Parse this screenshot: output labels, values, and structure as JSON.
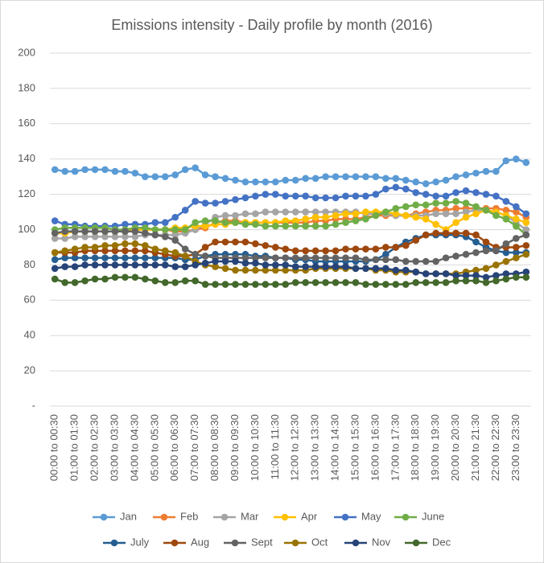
{
  "chart_data": {
    "type": "line",
    "title": "Emissions intensity - Daily profile by month (2016)",
    "categories": [
      "00:00 to 00:30",
      null,
      "01:00 to 01:30",
      null,
      "02:00 to 02:30",
      null,
      "03:00 to 03:30",
      null,
      "04:00 to 04:30",
      null,
      "05:00 to 05:30",
      null,
      "06:00 to 06:30",
      null,
      "07:00 to 07:30",
      null,
      "08:00 to 08:30",
      null,
      "09:00 to 09:30",
      null,
      "10:00 to 10:30",
      null,
      "11:00 to 11:30",
      null,
      "12:00 to 12:30",
      null,
      "13:00 to 13:30",
      null,
      "14:00 to 14:30",
      null,
      "15:00 to 15:30",
      null,
      "16:00 to 16:30",
      null,
      "17:00 to 17:30",
      null,
      "18:00 to 18:30",
      null,
      "19:00 to 19:30",
      null,
      "20:00 to 20:30",
      null,
      "21:00 to 21:30",
      null,
      "22:00 to 22:30",
      null,
      "23:00 to 23:30",
      null
    ],
    "ylim": [
      0,
      200
    ],
    "yticks": [
      {
        "value": 0,
        "label": "-"
      },
      20,
      40,
      60,
      80,
      100,
      120,
      140,
      160,
      180,
      200
    ],
    "grid": true,
    "legend": "bottom",
    "series": [
      {
        "name": "Jan",
        "color": "#5b9bd5",
        "values": [
          134,
          133,
          133,
          134,
          134,
          134,
          133,
          133,
          132,
          130,
          130,
          130,
          131,
          134,
          135,
          131,
          130,
          129,
          128,
          127,
          127,
          127,
          127,
          128,
          128,
          129,
          129,
          130,
          130,
          130,
          130,
          130,
          130,
          129,
          129,
          128,
          127,
          126,
          127,
          128,
          130,
          131,
          132,
          133,
          133,
          139,
          140,
          138
        ]
      },
      {
        "name": "Feb",
        "color": "#ed7d31",
        "values": [
          98,
          98,
          99,
          99,
          99,
          99,
          99,
          99,
          100,
          100,
          100,
          100,
          99,
          99,
          100,
          101,
          104,
          105,
          105,
          104,
          104,
          104,
          104,
          104,
          104,
          104,
          105,
          105,
          106,
          106,
          106,
          107,
          108,
          108,
          108,
          108,
          109,
          110,
          111,
          111,
          112,
          112,
          112,
          112,
          112,
          111,
          110,
          107
        ]
      },
      {
        "name": "Mar",
        "color": "#a5a5a5",
        "values": [
          95,
          95,
          96,
          96,
          96,
          96,
          96,
          96,
          96,
          97,
          97,
          97,
          97,
          98,
          100,
          103,
          107,
          108,
          108,
          109,
          109,
          110,
          110,
          110,
          110,
          110,
          110,
          110,
          110,
          110,
          110,
          109,
          109,
          109,
          108,
          108,
          108,
          108,
          109,
          109,
          109,
          110,
          111,
          111,
          110,
          108,
          104,
          100
        ]
      },
      {
        "name": "Apr",
        "color": "#ffc000",
        "values": [
          98,
          98,
          99,
          99,
          99,
          99,
          99,
          99,
          100,
          100,
          100,
          100,
          101,
          101,
          102,
          102,
          103,
          103,
          104,
          104,
          104,
          104,
          104,
          105,
          105,
          106,
          107,
          107,
          108,
          109,
          109,
          110,
          110,
          110,
          109,
          108,
          107,
          106,
          103,
          100,
          104,
          107,
          109,
          111,
          110,
          108,
          106,
          104
        ]
      },
      {
        "name": "May",
        "color": "#4472c4",
        "values": [
          105,
          103,
          103,
          102,
          102,
          102,
          102,
          103,
          103,
          103,
          104,
          104,
          107,
          111,
          116,
          115,
          115,
          116,
          117,
          118,
          119,
          120,
          120,
          119,
          119,
          119,
          118,
          118,
          118,
          119,
          119,
          119,
          120,
          123,
          124,
          123,
          121,
          120,
          119,
          119,
          121,
          122,
          121,
          120,
          119,
          116,
          113,
          109
        ]
      },
      {
        "name": "June",
        "color": "#70ad47",
        "values": [
          100,
          101,
          101,
          101,
          101,
          101,
          100,
          100,
          101,
          101,
          100,
          100,
          100,
          100,
          104,
          105,
          105,
          104,
          104,
          103,
          103,
          102,
          102,
          102,
          102,
          102,
          102,
          102,
          103,
          104,
          105,
          106,
          108,
          110,
          112,
          113,
          114,
          114,
          115,
          115,
          116,
          115,
          113,
          111,
          108,
          106,
          102,
          97
        ]
      },
      {
        "name": "July",
        "color": "#255e91",
        "values": [
          83,
          84,
          84,
          84,
          84,
          84,
          84,
          84,
          84,
          84,
          84,
          84,
          84,
          83,
          83,
          85,
          86,
          86,
          86,
          86,
          85,
          85,
          84,
          84,
          83,
          83,
          82,
          82,
          82,
          82,
          82,
          82,
          83,
          86,
          90,
          93,
          95,
          97,
          97,
          97,
          97,
          96,
          93,
          90,
          88,
          87,
          87,
          87
        ]
      },
      {
        "name": "Aug",
        "color": "#9e480e",
        "values": [
          87,
          87,
          87,
          88,
          88,
          88,
          88,
          88,
          88,
          88,
          87,
          86,
          85,
          85,
          86,
          90,
          93,
          93,
          93,
          93,
          92,
          91,
          90,
          89,
          88,
          88,
          88,
          88,
          88,
          89,
          89,
          89,
          89,
          90,
          90,
          91,
          94,
          97,
          98,
          98,
          98,
          98,
          97,
          93,
          90,
          90,
          90,
          91
        ]
      },
      {
        "name": "Sept",
        "color": "#636363",
        "values": [
          98,
          99,
          99,
          99,
          99,
          99,
          99,
          99,
          99,
          98,
          97,
          96,
          94,
          89,
          86,
          85,
          84,
          84,
          84,
          84,
          84,
          84,
          84,
          84,
          84,
          84,
          84,
          84,
          84,
          84,
          84,
          83,
          83,
          83,
          83,
          82,
          82,
          82,
          82,
          84,
          85,
          86,
          87,
          88,
          88,
          92,
          95,
          97
        ]
      },
      {
        "name": "Oct",
        "color": "#997300",
        "values": [
          87,
          88,
          89,
          90,
          90,
          91,
          91,
          92,
          92,
          91,
          89,
          88,
          87,
          85,
          82,
          80,
          79,
          78,
          77,
          77,
          77,
          77,
          77,
          77,
          77,
          77,
          78,
          78,
          78,
          78,
          78,
          78,
          77,
          77,
          76,
          76,
          76,
          75,
          75,
          75,
          75,
          76,
          77,
          78,
          80,
          82,
          84,
          86
        ]
      },
      {
        "name": "Nov",
        "color": "#264478",
        "values": [
          78,
          79,
          79,
          80,
          80,
          80,
          80,
          80,
          80,
          80,
          80,
          80,
          79,
          79,
          80,
          81,
          82,
          82,
          82,
          81,
          81,
          80,
          80,
          80,
          79,
          79,
          79,
          79,
          79,
          79,
          78,
          78,
          78,
          78,
          77,
          77,
          76,
          75,
          75,
          75,
          74,
          74,
          74,
          73,
          74,
          75,
          75,
          76
        ]
      },
      {
        "name": "Dec",
        "color": "#43682b",
        "values": [
          72,
          70,
          70,
          71,
          72,
          72,
          73,
          73,
          73,
          72,
          71,
          70,
          70,
          71,
          71,
          69,
          69,
          69,
          69,
          69,
          69,
          69,
          69,
          69,
          70,
          70,
          70,
          70,
          70,
          70,
          70,
          69,
          69,
          69,
          69,
          69,
          70,
          70,
          70,
          70,
          71,
          71,
          71,
          70,
          71,
          72,
          73,
          73
        ]
      }
    ]
  }
}
